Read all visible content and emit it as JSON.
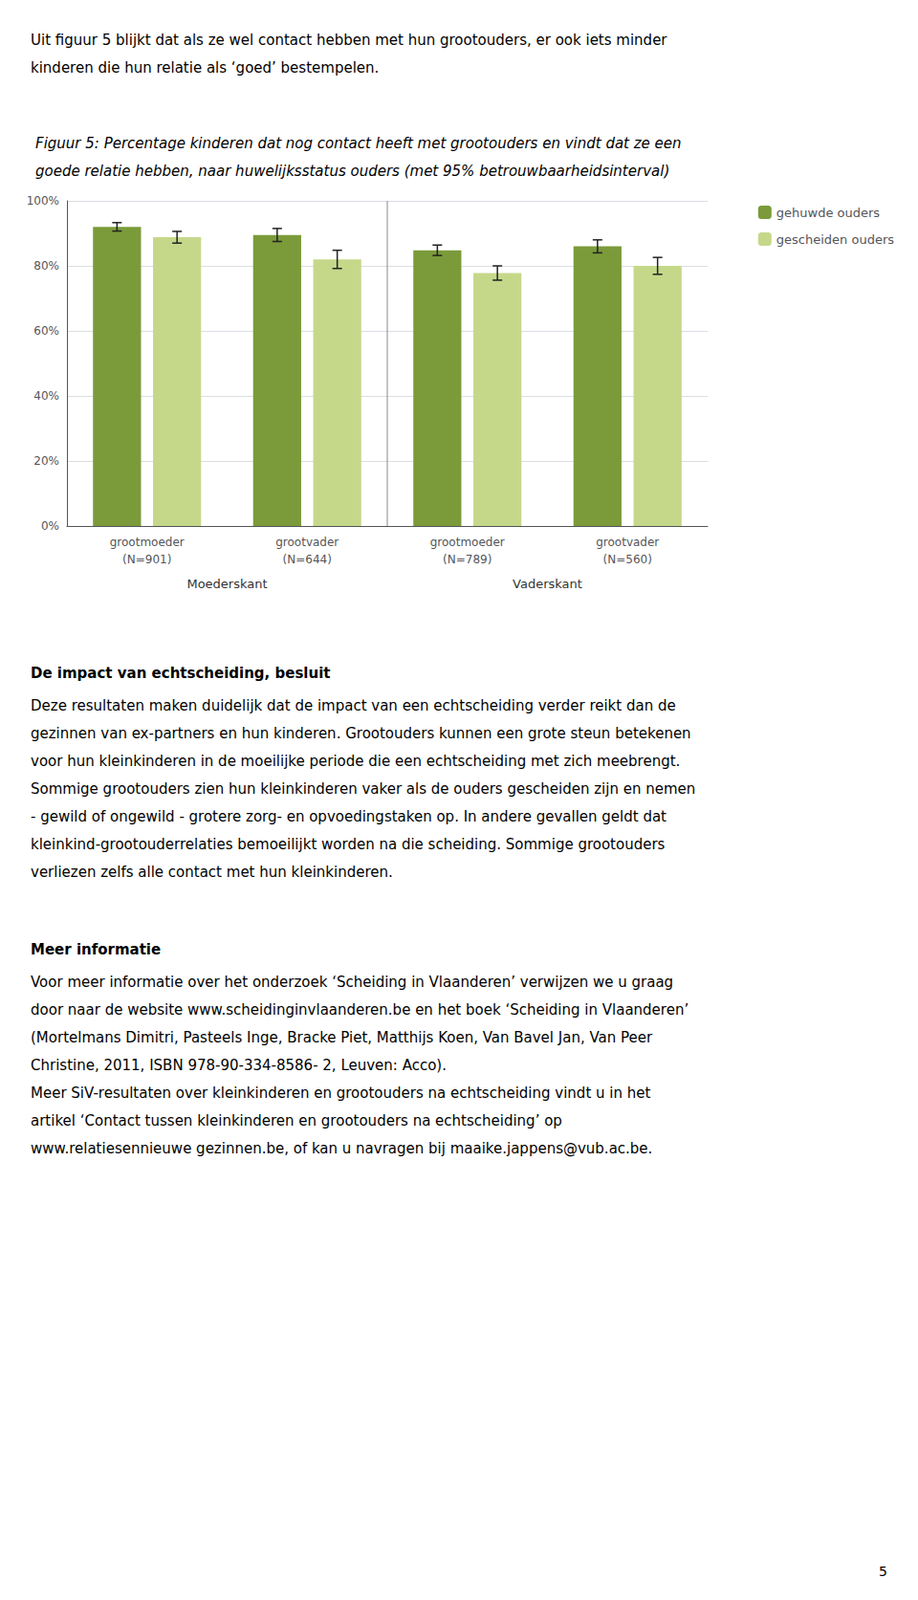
{
  "page": {
    "intro": [
      "Uit figuur 5 blijkt dat als ze wel contact hebben met hun grootouders, er ook iets minder",
      "kinderen die hun relatie als ‘goed’ bestempelen."
    ],
    "sections": [
      {
        "heading": "De impact van echtscheiding, besluit",
        "lines": [
          "Deze resultaten maken duidelijk dat de impact van een echtscheiding verder reikt dan de",
          "gezinnen van ex-partners en hun kinderen. Grootouders kunnen een grote steun betekenen",
          "voor hun kleinkinderen in de moeilijke periode die een echtscheiding met zich meebrengt.",
          "Sommige grootouders zien hun kleinkinderen vaker als de ouders gescheiden zijn en nemen",
          "- gewild of ongewild - grotere zorg- en opvoedingstaken op. In andere gevallen geldt dat",
          "kleinkind-grootouderrelaties bemoeilijkt worden na die scheiding. Sommige grootouders",
          "verliezen zelfs alle contact met hun kleinkinderen."
        ]
      },
      {
        "heading": "Meer informatie",
        "lines": [
          "Voor meer informatie over het onderzoek ‘Scheiding in Vlaanderen’ verwijzen we u graag",
          "door naar de website www.scheidinginvlaanderen.be en het boek ‘Scheiding in Vlaanderen’",
          "(Mortelmans Dimitri, Pasteels Inge, Bracke Piet, Matthijs Koen, Van Bavel Jan, Van Peer",
          "Christine, 2011, ISBN 978-90-334-8586- 2, Leuven: Acco).",
          "Meer SiV-resultaten over kleinkinderen en grootouders na echtscheiding vindt u in het",
          "artikel ‘Contact tussen kleinkinderen en grootouders na echtscheiding’ op",
          "www.relatiesennieuwe gezinnen.be, of kan u navragen bij maaike.jappens@vub.ac.be."
        ]
      }
    ],
    "page_number": "5"
  },
  "chart_data": {
    "type": "bar",
    "title": "Figuur 5: Percentage kinderen dat nog contact heeft met grootouders en vindt dat ze een\ngoede relatie hebben, naar huwelijksstatus ouders (met 95% betrouwbaarheidsinterval)",
    "categories": [
      "grootmoeder\n(N=901)",
      "grootvader\n(N=644)",
      "grootmoeder\n(N=789)",
      "grootvader\n(N=560)"
    ],
    "annotations": [
      "Moederskant",
      "Vaderskant"
    ],
    "series": [
      {
        "name": "gehuwde ouders",
        "color": "#7B9B3A",
        "values": [
          0.92,
          0.895,
          0.848,
          0.86
        ],
        "errors": [
          0.013,
          0.02,
          0.016,
          0.02
        ]
      },
      {
        "name": "gescheiden ouders",
        "color": "#C5D88A",
        "values": [
          0.888,
          0.82,
          0.778,
          0.8
        ],
        "errors": [
          0.018,
          0.028,
          0.022,
          0.026
        ]
      }
    ],
    "ylim": [
      0.0,
      1.0
    ],
    "yticks": [
      {
        "value": 0.0,
        "label": "0%"
      },
      {
        "value": 0.2,
        "label": "20%"
      },
      {
        "value": 0.4,
        "label": "40%"
      },
      {
        "value": 0.6,
        "label": "60%"
      },
      {
        "value": 0.8,
        "label": "80%"
      },
      {
        "value": 1.0,
        "label": "100%"
      }
    ],
    "grid": true,
    "legend": "right"
  }
}
